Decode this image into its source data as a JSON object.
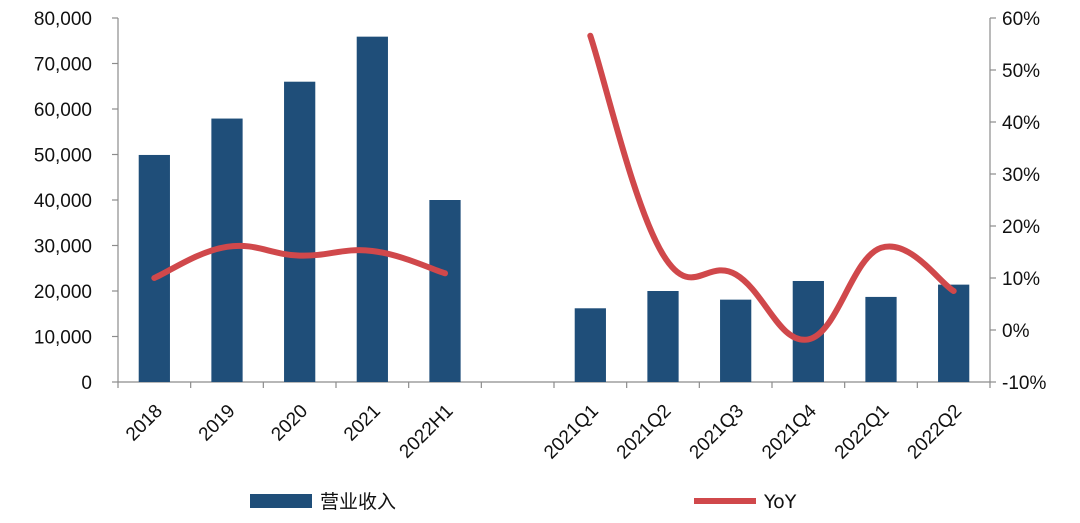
{
  "chart_data": {
    "type": "bar",
    "categories": [
      "2018",
      "2019",
      "2020",
      "2021",
      "2022H1",
      "",
      "2021Q1",
      "2021Q2",
      "2021Q3",
      "2021Q4",
      "2022Q1",
      "2022Q2"
    ],
    "series": [
      {
        "name": "营业收入",
        "type": "bar",
        "axis": "left",
        "color": "#1F4E79",
        "values": [
          49900,
          57900,
          66000,
          75900,
          40000,
          null,
          16200,
          20000,
          18100,
          22200,
          18700,
          21400
        ]
      },
      {
        "name": "YoY",
        "type": "line",
        "axis": "right",
        "color": "#D0484B",
        "values": [
          0.1,
          0.16,
          0.143,
          0.152,
          0.109,
          null,
          0.566,
          0.145,
          0.107,
          -0.018,
          0.158,
          0.075
        ]
      }
    ],
    "y_left": {
      "min": 0,
      "max": 80000,
      "ticks": [
        "0",
        "10,000",
        "20,000",
        "30,000",
        "40,000",
        "50,000",
        "60,000",
        "70,000",
        "80,000"
      ]
    },
    "y_right": {
      "min": -0.1,
      "max": 0.6,
      "ticks": [
        "-10%",
        "0%",
        "10%",
        "20%",
        "30%",
        "40%",
        "50%",
        "60%"
      ]
    },
    "legend": {
      "position": "bottom",
      "items": [
        "营业收入",
        "YoY"
      ]
    },
    "grid": false
  }
}
